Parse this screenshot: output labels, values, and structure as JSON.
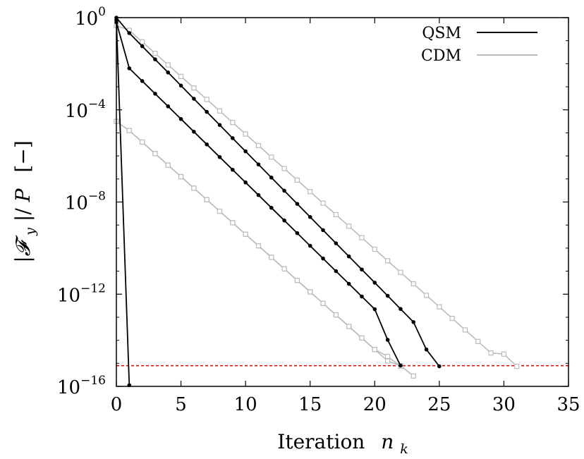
{
  "chart_data": {
    "type": "line",
    "xlabel": "Iteration",
    "xlabel_symbol": "n",
    "xlabel_subscript": "k",
    "ylabel_text": "|𝓕",
    "ylabel_sub": "y",
    "ylabel_mid": "|/",
    "ylabel_p": "P",
    "ylabel_units": "[−]",
    "y_scale": "log",
    "xlim": [
      0,
      35
    ],
    "ylim_exp": [
      -16,
      0
    ],
    "x_ticks": [
      {
        "value": 0,
        "label": "0"
      },
      {
        "value": 5,
        "label": "5"
      },
      {
        "value": 10,
        "label": "10"
      },
      {
        "value": 15,
        "label": "15"
      },
      {
        "value": 20,
        "label": "20"
      },
      {
        "value": 25,
        "label": "25"
      },
      {
        "value": 30,
        "label": "30"
      },
      {
        "value": 35,
        "label": "35"
      }
    ],
    "y_ticks": [
      {
        "exp": 0,
        "base": "10",
        "sup": "0"
      },
      {
        "exp": -4,
        "base": "10",
        "sup": "−4"
      },
      {
        "exp": -8,
        "base": "10",
        "sup": "−8"
      },
      {
        "exp": -12,
        "base": "10",
        "sup": "−12"
      },
      {
        "exp": -16,
        "base": "10",
        "sup": "−16"
      }
    ],
    "grid": false,
    "legend_position": "top-right",
    "threshold": {
      "log10_value": -15.1,
      "color": "#dd0000"
    },
    "series": [
      {
        "name": "QSM",
        "color": "#000000",
        "marker": "circle",
        "x": [
          0,
          1,
          2,
          3,
          4,
          5,
          6,
          7,
          8,
          9,
          10,
          11,
          12,
          13,
          14,
          15,
          16,
          17,
          18,
          19,
          20,
          21,
          22,
          23,
          24,
          25
        ],
        "log10_y": [
          0,
          -0.67,
          -1.24,
          -1.81,
          -2.38,
          -2.95,
          -3.52,
          -4.09,
          -4.66,
          -5.23,
          -5.8,
          -6.37,
          -6.94,
          -7.51,
          -8.08,
          -8.65,
          -9.22,
          -9.79,
          -10.36,
          -10.93,
          -11.5,
          -12.07,
          -12.64,
          -13.21,
          -14.4,
          -15.13
        ]
      },
      {
        "name": "",
        "color": "#000000",
        "marker": "circle",
        "x": [
          0,
          1,
          2,
          3,
          4,
          5,
          6,
          7,
          8,
          9,
          10,
          11,
          12,
          13,
          14,
          15,
          16,
          17,
          18,
          19,
          20,
          21,
          22
        ],
        "log10_y": [
          -0.2,
          -2.2,
          -2.75,
          -3.3,
          -3.85,
          -4.4,
          -4.95,
          -5.5,
          -6.05,
          -6.6,
          -7.15,
          -7.7,
          -8.25,
          -8.8,
          -9.35,
          -9.9,
          -10.45,
          -11,
          -11.55,
          -12.1,
          -12.65,
          -13.98,
          -15.1
        ]
      },
      {
        "name": "",
        "color": "#000000",
        "marker": "circle",
        "x": [
          0,
          1
        ],
        "log10_y": [
          -0.1,
          -15.95
        ]
      },
      {
        "name": "CDM",
        "color": "#bbbbbb",
        "marker": "square",
        "x": [
          0,
          1,
          2,
          3,
          4,
          5,
          6,
          7,
          8,
          9,
          10,
          11,
          12,
          13,
          14,
          15,
          16,
          17,
          18,
          19,
          20,
          21,
          22,
          23,
          24,
          25,
          26,
          27,
          28,
          29,
          30,
          31
        ],
        "log10_y": [
          -0.35,
          -0.55,
          -1.05,
          -1.55,
          -2.05,
          -2.55,
          -3.05,
          -3.55,
          -4.05,
          -4.55,
          -5.05,
          -5.55,
          -6.05,
          -6.55,
          -7.05,
          -7.55,
          -8.05,
          -8.55,
          -9.05,
          -9.55,
          -10.05,
          -10.55,
          -11.05,
          -11.55,
          -12.05,
          -12.55,
          -13.05,
          -13.55,
          -14.05,
          -14.55,
          -14.6,
          -15.13
        ]
      },
      {
        "name": "",
        "color": "#bbbbbb",
        "marker": "square",
        "x": [
          0,
          1,
          2,
          3,
          4,
          5,
          6,
          7,
          8,
          9,
          10,
          11,
          12,
          13,
          14,
          15,
          16,
          17,
          18,
          19,
          20,
          21,
          22,
          23
        ],
        "log10_y": [
          -4.5,
          -4.9,
          -5.4,
          -5.9,
          -6.4,
          -6.9,
          -7.4,
          -7.9,
          -8.4,
          -8.9,
          -9.4,
          -9.9,
          -10.4,
          -10.9,
          -11.4,
          -11.9,
          -12.4,
          -12.9,
          -13.4,
          -13.9,
          -14.4,
          -14.9,
          -15.1,
          -15.55
        ]
      },
      {
        "name": "",
        "color": "#bbbbbb",
        "marker": "square",
        "x": [
          0,
          1,
          2,
          3,
          4,
          5,
          6,
          7,
          8,
          9,
          10,
          11,
          12,
          13,
          14,
          15,
          16,
          17,
          18,
          19,
          20,
          21,
          22
        ],
        "log10_y": [
          -4.5,
          -4.9,
          -5.4,
          -5.9,
          -6.4,
          -6.9,
          -7.4,
          -7.9,
          -8.4,
          -8.9,
          -9.4,
          -9.9,
          -10.4,
          -10.9,
          -11.4,
          -11.9,
          -12.4,
          -12.9,
          -13.4,
          -13.9,
          -14.4,
          -14.7,
          -15.13
        ]
      }
    ]
  }
}
